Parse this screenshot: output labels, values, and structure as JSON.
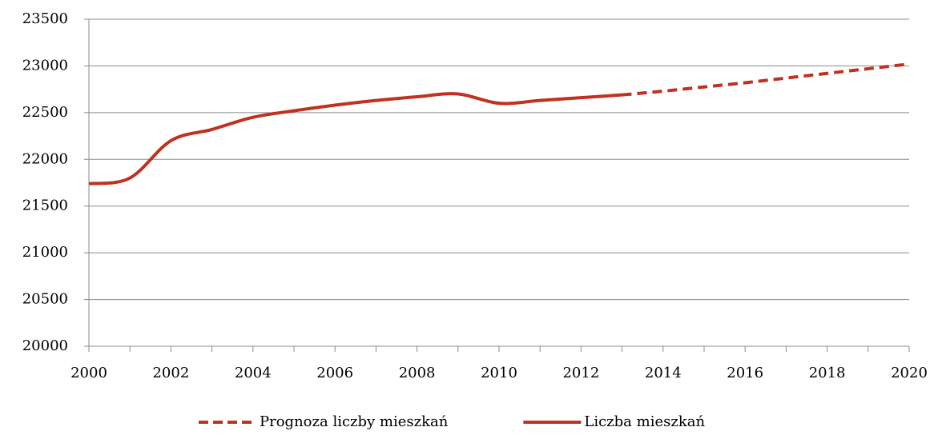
{
  "chart_data": {
    "type": "line",
    "x": [
      2000,
      2001,
      2002,
      2003,
      2004,
      2005,
      2006,
      2007,
      2008,
      2009,
      2010,
      2011,
      2012,
      2013,
      2014,
      2015,
      2016,
      2017,
      2018,
      2019,
      2020
    ],
    "series": [
      {
        "name": "Prognoza liczby mieszkań",
        "color": "#c0311f",
        "line_style": "dashed",
        "values": [
          null,
          null,
          null,
          null,
          null,
          null,
          null,
          null,
          null,
          null,
          null,
          null,
          null,
          22690,
          22730,
          22775,
          22820,
          22870,
          22920,
          22970,
          23020
        ]
      },
      {
        "name": "Liczba mieszkań",
        "color": "#c0311f",
        "line_style": "solid",
        "values": [
          21740,
          21800,
          22200,
          22320,
          22450,
          22520,
          22580,
          22630,
          22670,
          22700,
          22600,
          22630,
          22660,
          22690,
          null,
          null,
          null,
          null,
          null,
          null,
          null
        ]
      }
    ],
    "xlim": [
      2000,
      2020
    ],
    "xticks": [
      2000,
      2002,
      2004,
      2006,
      2008,
      2010,
      2012,
      2014,
      2016,
      2018,
      2020
    ],
    "xminorticks": [
      2001,
      2003,
      2005,
      2007,
      2009,
      2011,
      2013,
      2015,
      2017,
      2019
    ],
    "ylim": [
      20000,
      23500
    ],
    "yticks": [
      20000,
      20500,
      21000,
      21500,
      22000,
      22500,
      23000,
      23500
    ],
    "grid": true,
    "legend": "bottom"
  }
}
